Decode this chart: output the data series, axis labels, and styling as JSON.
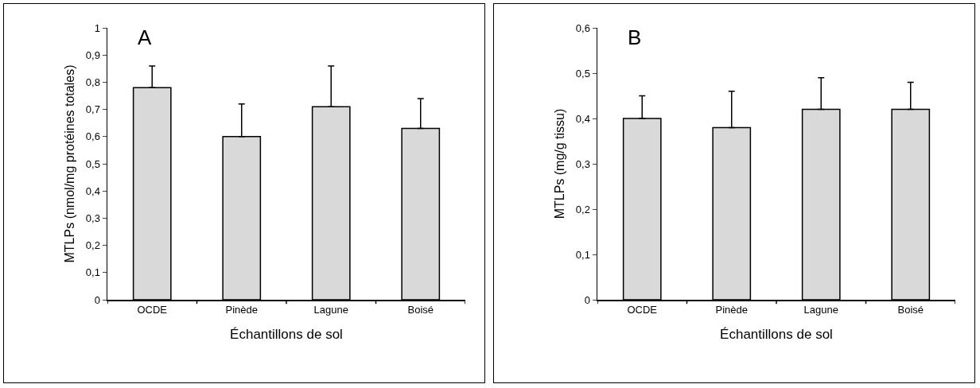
{
  "chart_data": [
    {
      "type": "bar",
      "title": "A",
      "xlabel": "Échantillons de sol",
      "ylabel": "MTLPs (nmol/mg protéines totales)",
      "categories": [
        "OCDE",
        "Pinède",
        "Lagune",
        "Boisé"
      ],
      "values": [
        0.78,
        0.6,
        0.71,
        0.63
      ],
      "color": "#d9d9d9",
      "errors": [
        [
          0.78,
          0.86
        ],
        [
          0.6,
          0.72
        ],
        [
          0.71,
          0.86
        ],
        [
          0.63,
          0.74
        ]
      ],
      "ylim": [
        0,
        1
      ],
      "yticks": [
        {
          "value": 0,
          "label": "0"
        },
        {
          "value": 0.1,
          "label": "0,1"
        },
        {
          "value": 0.2,
          "label": "0,2"
        },
        {
          "value": 0.3,
          "label": "0,3"
        },
        {
          "value": 0.4,
          "label": "0,4"
        },
        {
          "value": 0.5,
          "label": "0,5"
        },
        {
          "value": 0.6,
          "label": "0,6"
        },
        {
          "value": 0.7,
          "label": "0,7"
        },
        {
          "value": 0.8,
          "label": "0,8"
        },
        {
          "value": 0.9,
          "label": "0,9"
        },
        {
          "value": 1,
          "label": "1"
        }
      ]
    },
    {
      "type": "bar",
      "title": "B",
      "xlabel": "Échantillons de sol",
      "ylabel": "MTLPs (mg/g tissu)",
      "categories": [
        "OCDE",
        "Pinède",
        "Lagune",
        "Boisé"
      ],
      "values": [
        0.4,
        0.38,
        0.42,
        0.42
      ],
      "color": "#d9d9d9",
      "errors": [
        [
          0.4,
          0.45
        ],
        [
          0.38,
          0.46
        ],
        [
          0.42,
          0.49
        ],
        [
          0.42,
          0.48
        ]
      ],
      "ylim": [
        0,
        0.6
      ],
      "yticks": [
        {
          "value": 0,
          "label": "0"
        },
        {
          "value": 0.1,
          "label": "0,1"
        },
        {
          "value": 0.2,
          "label": "0,2"
        },
        {
          "value": 0.3,
          "label": "0,3"
        },
        {
          "value": 0.4,
          "label": "0,4"
        },
        {
          "value": 0.5,
          "label": "0,5"
        },
        {
          "value": 0.6,
          "label": "0,6"
        }
      ]
    }
  ]
}
